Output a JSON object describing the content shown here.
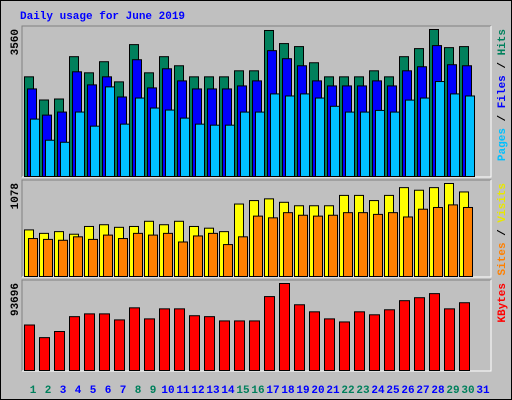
{
  "chart_data": [
    {
      "type": "bar",
      "title": "Daily usage for June 2019",
      "ylim": [
        0,
        3560
      ],
      "yticks": [
        3560
      ],
      "legend_separator": " / ",
      "series": [
        {
          "name": "Hits",
          "color": "#00805c",
          "values": [
            2414,
            1853,
            1877,
            2902,
            2511,
            2780,
            2292,
            3194,
            2511,
            2902,
            2682,
            2414,
            2414,
            2414,
            2560,
            2560,
            3536,
            3219,
            3146,
            2755,
            2414,
            2414,
            2414,
            2560,
            2414,
            2902,
            3097,
            3560,
            3121,
            3146,
            null
          ]
        },
        {
          "name": "Files",
          "color": "#0000ff",
          "values": [
            2121,
            1487,
            1561,
            2536,
            2219,
            2414,
            1926,
            2828,
            2146,
            2609,
            2316,
            2121,
            2121,
            2121,
            2194,
            2316,
            3048,
            2853,
            2682,
            2316,
            2194,
            2194,
            2194,
            2316,
            2194,
            2560,
            2658,
            3170,
            2707,
            2682,
            null
          ]
        },
        {
          "name": "Pages",
          "color": "#00c0ff",
          "values": [
            1390,
            878,
            829,
            1561,
            1219,
            2170,
            1268,
            1900,
            1658,
            1609,
            1414,
            1268,
            1243,
            1243,
            1560,
            1560,
            2000,
            1950,
            2000,
            1900,
            1700,
            1560,
            1560,
            1600,
            1560,
            1850,
            1900,
            2300,
            2000,
            1950,
            null
          ]
        }
      ]
    },
    {
      "type": "bar",
      "ylim": [
        0,
        1078
      ],
      "yticks": [
        1078
      ],
      "legend_separator": " / ",
      "series": [
        {
          "name": "Visits",
          "color": "#ffff00",
          "values": [
            540,
            500,
            520,
            490,
            580,
            600,
            570,
            580,
            640,
            600,
            640,
            580,
            560,
            520,
            840,
            880,
            900,
            860,
            820,
            820,
            820,
            940,
            940,
            880,
            940,
            1030,
            1000,
            1030,
            1078,
            980,
            null
          ]
        },
        {
          "name": "Sites",
          "color": "#ff8000",
          "values": [
            440,
            430,
            420,
            460,
            430,
            480,
            440,
            500,
            480,
            500,
            400,
            470,
            500,
            370,
            460,
            700,
            680,
            740,
            710,
            700,
            710,
            740,
            740,
            720,
            740,
            690,
            780,
            800,
            830,
            800,
            null
          ]
        }
      ]
    },
    {
      "type": "bar",
      "ylim": [
        0,
        93696
      ],
      "yticks": [
        93696
      ],
      "categories": [
        "1",
        "2",
        "3",
        "4",
        "5",
        "6",
        "7",
        "8",
        "9",
        "10",
        "11",
        "12",
        "13",
        "14",
        "15",
        "16",
        "17",
        "18",
        "19",
        "20",
        "21",
        "22",
        "23",
        "24",
        "25",
        "26",
        "27",
        "28",
        "29",
        "30",
        "31"
      ],
      "category_colors": [
        "#00805c",
        "#00805c",
        "#0000ff",
        "#0000ff",
        "#0000ff",
        "#0000ff",
        "#0000ff",
        "#00805c",
        "#00805c",
        "#0000ff",
        "#0000ff",
        "#0000ff",
        "#0000ff",
        "#0000ff",
        "#00805c",
        "#00805c",
        "#0000ff",
        "#0000ff",
        "#0000ff",
        "#0000ff",
        "#0000ff",
        "#00805c",
        "#00805c",
        "#0000ff",
        "#0000ff",
        "#0000ff",
        "#0000ff",
        "#0000ff",
        "#00805c",
        "#00805c",
        "#0000ff"
      ],
      "series": [
        {
          "name": "KBytes",
          "color": "#ff0000",
          "values": [
            49000,
            35400,
            42000,
            58000,
            61000,
            61000,
            54500,
            67500,
            55600,
            66400,
            66400,
            59000,
            58000,
            53400,
            53400,
            53400,
            79600,
            93696,
            70800,
            63200,
            55600,
            52300,
            63200,
            60000,
            65400,
            75200,
            78400,
            82800,
            66400,
            73000,
            null
          ]
        }
      ]
    }
  ]
}
